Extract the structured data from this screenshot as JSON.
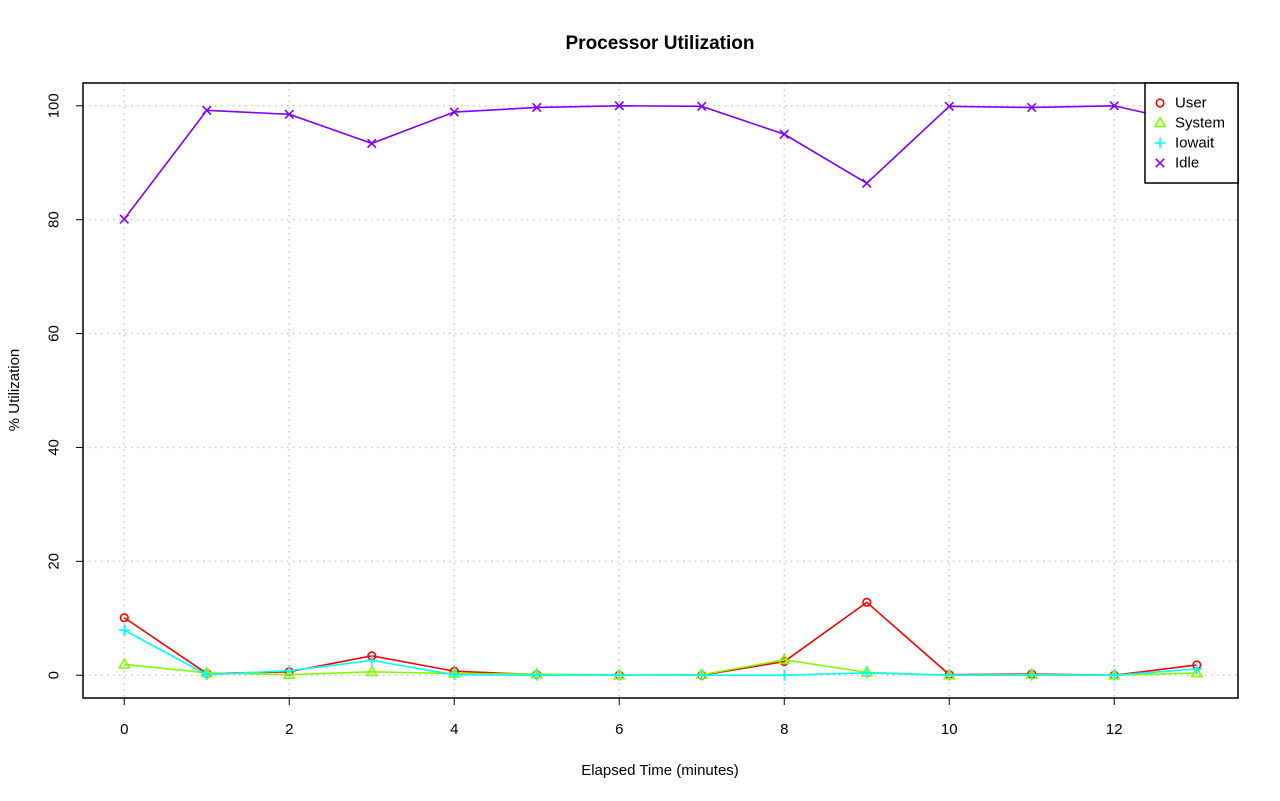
{
  "chart_data": {
    "type": "line",
    "title": "Processor Utilization",
    "xlabel": "Elapsed Time (minutes)",
    "ylabel": "% Utilization",
    "xlim": [
      -0.5,
      13.5
    ],
    "ylim": [
      -4,
      104
    ],
    "xticks": [
      0,
      2,
      4,
      6,
      8,
      10,
      12
    ],
    "yticks": [
      0,
      20,
      40,
      60,
      80,
      100
    ],
    "grid": true,
    "legend_position": "top-right",
    "x": [
      0,
      1,
      2,
      3,
      4,
      5,
      6,
      7,
      8,
      9,
      10,
      11,
      12,
      13
    ],
    "series": [
      {
        "name": "User",
        "color": "#ff0000",
        "marker": "circle",
        "values": [
          10.1,
          0.3,
          0.6,
          3.4,
          0.7,
          0.1,
          0.0,
          0.0,
          2.4,
          12.8,
          0.1,
          0.2,
          0.0,
          1.8
        ]
      },
      {
        "name": "System",
        "color": "#80ff00",
        "marker": "triangle",
        "values": [
          1.9,
          0.4,
          0.1,
          0.6,
          0.3,
          0.2,
          0.0,
          0.1,
          2.7,
          0.5,
          0.0,
          0.1,
          0.0,
          0.4
        ]
      },
      {
        "name": "Iowait",
        "color": "#00ffff",
        "marker": "plus",
        "values": [
          7.9,
          0.1,
          0.8,
          2.6,
          0.1,
          0.0,
          0.0,
          0.0,
          0.0,
          0.4,
          0.0,
          0.0,
          0.0,
          1.1
        ]
      },
      {
        "name": "Idle",
        "color": "#8000ff",
        "marker": "cross",
        "values": [
          80.1,
          99.2,
          98.5,
          93.4,
          98.9,
          99.7,
          100.0,
          99.9,
          95.0,
          86.4,
          99.9,
          99.7,
          100.0,
          96.7
        ]
      }
    ]
  }
}
